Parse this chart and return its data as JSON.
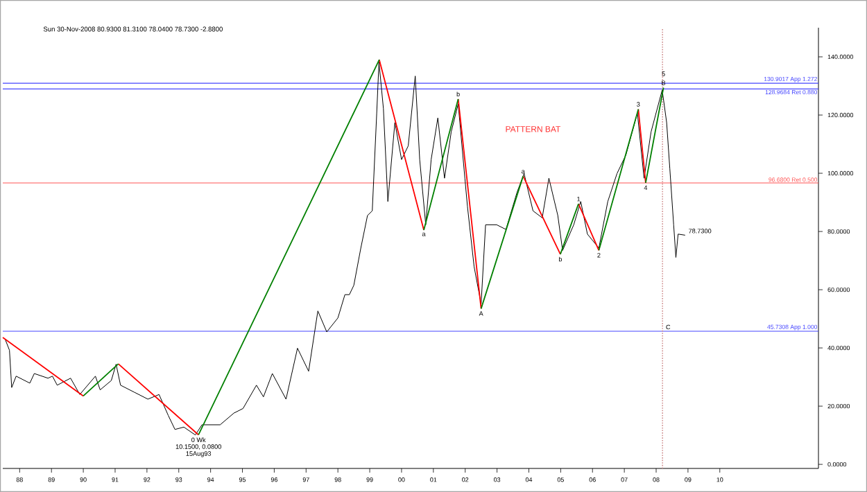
{
  "chart_data": {
    "type": "line",
    "xlim": [
      1987.47,
      2013.1
    ],
    "ylim": [
      -1.4,
      150
    ],
    "xticks": [
      {
        "value": 1988,
        "label": "88"
      },
      {
        "value": 1989,
        "label": "89"
      },
      {
        "value": 1990,
        "label": "90"
      },
      {
        "value": 1991,
        "label": "91"
      },
      {
        "value": 1992,
        "label": "92"
      },
      {
        "value": 1993,
        "label": "93"
      },
      {
        "value": 1994,
        "label": "94"
      },
      {
        "value": 1995,
        "label": "95"
      },
      {
        "value": 1996,
        "label": "96"
      },
      {
        "value": 1997,
        "label": "97"
      },
      {
        "value": 1998,
        "label": "98"
      },
      {
        "value": 1999,
        "label": "99"
      },
      {
        "value": 2000,
        "label": "00"
      },
      {
        "value": 2001,
        "label": "01"
      },
      {
        "value": 2002,
        "label": "02"
      },
      {
        "value": 2003,
        "label": "03"
      },
      {
        "value": 2004,
        "label": "04"
      },
      {
        "value": 2005,
        "label": "05"
      },
      {
        "value": 2006,
        "label": "06"
      },
      {
        "value": 2007,
        "label": "07"
      },
      {
        "value": 2008,
        "label": "08"
      },
      {
        "value": 2009,
        "label": "09"
      },
      {
        "value": 2010,
        "label": "10"
      }
    ],
    "yticks": [
      {
        "value": 0,
        "label": "0.0000"
      },
      {
        "value": 20,
        "label": "20.0000"
      },
      {
        "value": 40,
        "label": "40.0000"
      },
      {
        "value": 60,
        "label": "60.0000"
      },
      {
        "value": 80,
        "label": "80.0000"
      },
      {
        "value": 100,
        "label": "100.0000"
      },
      {
        "value": 120,
        "label": "120.0000"
      },
      {
        "value": 140,
        "label": "140.0000"
      }
    ],
    "series": [
      {
        "color": "#000000",
        "x": [
          1987.54,
          1987.68,
          1987.75,
          1987.89,
          1988.32,
          1988.46,
          1988.89,
          1989.03,
          1989.18,
          1989.6,
          1989.89,
          1990.38,
          1990.53,
          1990.88,
          1991.03,
          1991.17,
          1991.6,
          1992.03,
          1992.38,
          1992.67,
          1992.88,
          1993.16,
          1993.52,
          1993.73,
          1994.3,
          1994.73,
          1995.02,
          1995.44,
          1995.66,
          1995.94,
          1996.37,
          1996.73,
          1997.08,
          1997.37,
          1997.65,
          1998.0,
          1998.22,
          1998.36,
          1998.5,
          1998.72,
          1998.93,
          1999.08,
          1999.22,
          1999.29,
          1999.43,
          1999.57,
          1999.79,
          2000.0,
          2000.21,
          2000.43,
          2000.57,
          2000.76,
          2000.93,
          2001.14,
          2001.35,
          2001.56,
          2001.78,
          2001.99,
          2002.07,
          2002.28,
          2002.5,
          2002.64,
          2002.99,
          2003.28,
          2003.63,
          2003.85,
          2004.13,
          2004.42,
          2004.63,
          2004.91,
          2005.06,
          2005.41,
          2005.63,
          2005.84,
          2006.2,
          2006.48,
          2006.77,
          2007.05,
          2007.41,
          2007.62,
          2007.84,
          2008.19,
          2008.33,
          2008.43,
          2008.55,
          2008.62,
          2008.69,
          2008.91
        ],
        "values": [
          43.1,
          39.2,
          26.4,
          30.3,
          27.9,
          31.2,
          29.6,
          30.3,
          27.2,
          29.6,
          24.0,
          30.3,
          25.6,
          28.8,
          34.4,
          27.2,
          24.8,
          22.4,
          24.0,
          16.8,
          12.0,
          12.8,
          10.1,
          13.6,
          13.6,
          17.6,
          19.2,
          27.2,
          23.2,
          31.2,
          22.4,
          39.9,
          32.0,
          52.7,
          45.5,
          50.3,
          58.3,
          58.3,
          61.5,
          74.3,
          85.5,
          87.1,
          120.7,
          138.2,
          122.2,
          90.3,
          117.4,
          104.7,
          109.4,
          133.4,
          104.7,
          82.3,
          104.7,
          119.0,
          98.3,
          114.2,
          123.8,
          98.3,
          88.7,
          67.9,
          55.1,
          82.3,
          82.3,
          80.7,
          93.5,
          99.9,
          87.1,
          84.7,
          98.3,
          85.5,
          73.5,
          82.3,
          90.3,
          79.1,
          74.3,
          90.3,
          99.9,
          106.3,
          120.7,
          98.3,
          114.2,
          128.6,
          117.4,
          101.5,
          82.3,
          71.1,
          79.1,
          78.73
        ]
      },
      {
        "color": "#ff0000",
        "x": [
          1987.47,
          1990.0,
          null,
          1991.1,
          1993.62,
          null,
          1999.3,
          2000.7,
          null,
          2001.78,
          2002.5,
          null,
          2003.82,
          2004.99,
          null,
          2005.56,
          2006.2,
          null,
          2007.44,
          2007.67
        ],
        "values": [
          43.6,
          23.5,
          null,
          34.5,
          10.15,
          null,
          139,
          80.5,
          null,
          125.5,
          53.5,
          null,
          99,
          72.2,
          null,
          89.5,
          73.5,
          null,
          122,
          96.7
        ]
      },
      {
        "color": "#008000",
        "x": [
          1990.0,
          1991.1,
          null,
          1993.62,
          1999.3,
          null,
          2000.7,
          2001.78,
          null,
          2002.5,
          2003.82,
          null,
          2004.99,
          2005.56,
          null,
          2006.2,
          2007.44,
          null,
          2007.67,
          2008.23
        ],
        "values": [
          23.5,
          34.5,
          null,
          10.15,
          139,
          null,
          80.5,
          125.5,
          null,
          53.5,
          99,
          null,
          72.2,
          89.5,
          null,
          73.5,
          122,
          null,
          96.7,
          129.4
        ]
      }
    ],
    "ref_lines": [
      {
        "axis": "y",
        "value": 130.9017,
        "label": "130.9017 App 1.272",
        "color": "#4444ff",
        "line_style": "solid"
      },
      {
        "axis": "y",
        "value": 128.9684,
        "label": "128.9684 Ret 0.880",
        "color": "#4444ff",
        "line_style": "solid"
      },
      {
        "axis": "y",
        "value": 96.68,
        "label": "96.6800 Ret 0.500",
        "color": "#ff5555",
        "line_style": "solid"
      },
      {
        "axis": "y",
        "value": 45.7308,
        "label": "45.7308 App 1.000",
        "color": "#4444ff",
        "line_style": "solid"
      },
      {
        "axis": "x",
        "value": 2008.2,
        "color": "#d09090",
        "line_style": "dotted"
      }
    ],
    "annotations": [
      "Sun 30-Nov-2008   80.9300   81.3100   78.0400   78.7300   -2.8800",
      "PATTERN BAT",
      {
        "text": "a",
        "x": 2000.7,
        "y": 80.5
      },
      {
        "text": "b",
        "x": 2001.78,
        "y": 125.5
      },
      {
        "text": "A",
        "x": 2002.5,
        "y": 53.5
      },
      {
        "text": "a",
        "x": 2003.82,
        "y": 99
      },
      {
        "text": "b",
        "x": 2004.99,
        "y": 72.2
      },
      {
        "text": "1",
        "x": 2005.56,
        "y": 89.5
      },
      {
        "text": "2",
        "x": 2006.2,
        "y": 73.5
      },
      {
        "text": "3",
        "x": 2007.44,
        "y": 122
      },
      {
        "text": "4",
        "x": 2007.67,
        "y": 96.7
      },
      {
        "text": "B",
        "x": 2008.23,
        "y": 129.4
      },
      {
        "text": "5",
        "x": 2008.23,
        "y": 129.4
      },
      {
        "text": "C",
        "x": 2008.2,
        "y": 45.7308
      },
      {
        "text": "0 Wk",
        "x": 1993.62,
        "y": 10.15
      },
      {
        "text": "10.1500, 0.0800",
        "x": 1993.62,
        "y": 10.15
      },
      {
        "text": "15Aug93",
        "x": 1993.62,
        "y": 10.15
      },
      {
        "text": "78.7300",
        "x": 2008.91,
        "y": 78.73
      }
    ]
  }
}
